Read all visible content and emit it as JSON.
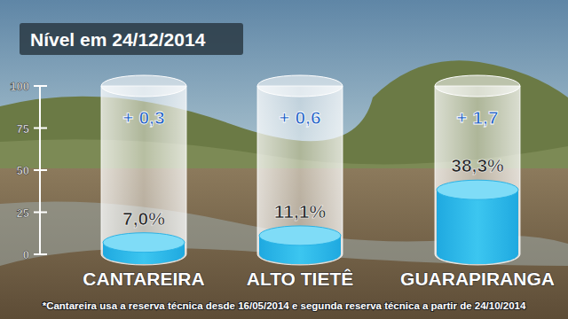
{
  "chart_data": {
    "type": "bar",
    "title": "Nível em 24/12/2014",
    "categories": [
      "CANTAREIRA",
      "ALTO TIETÊ",
      "GUARAPIRANGA"
    ],
    "values": [
      7.0,
      11.1,
      38.3
    ],
    "value_labels": [
      "7,0%",
      "11,1%",
      "38,3%"
    ],
    "changes": [
      0.3,
      0.6,
      1.7
    ],
    "change_labels": [
      "+ 0,3",
      "+ 0,6",
      "+ 1,7"
    ],
    "footnote": "*Cantareira usa a reserva técnica desde 16/05/2014 e segunda reserva técnica a partir de 24/10/2014",
    "color": "#3cc6f0",
    "ylim": [
      0,
      100
    ],
    "yticks": [
      0,
      25,
      50,
      75,
      100
    ],
    "grid": false,
    "data_labels": true
  }
}
